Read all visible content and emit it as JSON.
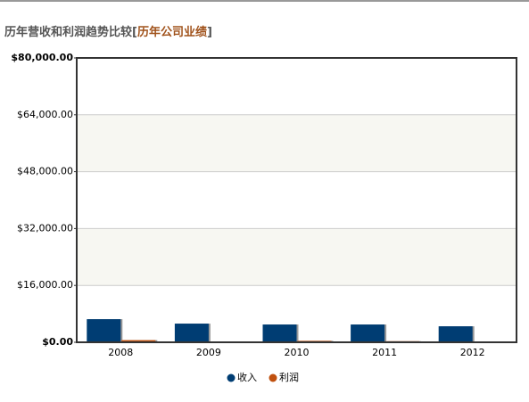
{
  "chart_data": {
    "type": "bar",
    "title": "历年营收和利润趋势比较",
    "link": {
      "open": "[",
      "text": "历年公司业绩",
      "close": "]"
    },
    "categories": [
      "2008",
      "2009",
      "2010",
      "2011",
      "2012"
    ],
    "series": [
      {
        "name": "收入",
        "color": "#003d73",
        "values": [
          6500,
          5250,
          5000,
          5000,
          4500
        ]
      },
      {
        "name": "利润",
        "color": "#c0500e",
        "values": [
          600,
          200,
          400,
          300,
          100
        ]
      }
    ],
    "ylim": [
      0,
      80000
    ],
    "yticks": [
      {
        "value": 0,
        "label": "$0.00"
      },
      {
        "value": 16000,
        "label": "$16,000.00"
      },
      {
        "value": 32000,
        "label": "$32,000.00"
      },
      {
        "value": 48000,
        "label": "$48,000.00"
      },
      {
        "value": 64000,
        "label": "$64,000.00"
      },
      {
        "value": 80000,
        "label": "$80,000.00"
      }
    ],
    "grid": true,
    "band_color": "#f7f7f2",
    "legend": "bottom"
  }
}
